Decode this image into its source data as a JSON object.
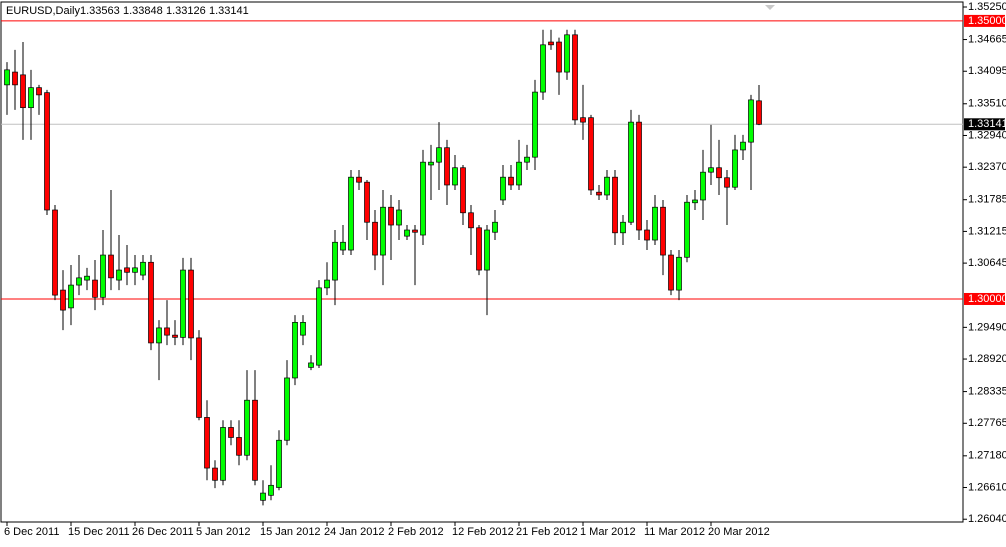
{
  "chart_data": {
    "type": "candlestick",
    "symbol": "EURUSD,Daily",
    "categories": [
      "6 Dec 2011",
      null,
      null,
      null,
      null,
      null,
      null,
      null,
      "15 Dec 2011",
      null,
      null,
      null,
      null,
      null,
      null,
      null,
      "26 Dec 2011",
      null,
      null,
      null,
      null,
      null,
      null,
      null,
      "5 Jan 2012",
      null,
      null,
      null,
      null,
      null,
      null,
      null,
      "15 Jan 2012",
      null,
      null,
      null,
      null,
      null,
      null,
      null,
      "24 Jan 2012",
      null,
      null,
      null,
      null,
      null,
      null,
      null,
      "2 Feb 2012",
      null,
      null,
      null,
      null,
      null,
      null,
      null,
      "12 Feb 2012",
      null,
      null,
      null,
      null,
      null,
      null,
      null,
      "21 Feb 2012",
      null,
      null,
      null,
      null,
      null,
      null,
      null,
      "1 Mar 2012",
      null,
      null,
      null,
      null,
      null,
      null,
      null,
      "11 Mar 2012",
      null,
      null,
      null,
      null,
      null,
      null,
      null,
      "20 Mar 2012",
      null,
      null,
      null,
      null,
      null,
      null
    ],
    "open": [
      1.3385,
      1.3408,
      1.3403,
      1.3344,
      1.338,
      1.3371,
      1.316,
      1.3016,
      1.2984,
      1.3025,
      1.3034,
      1.3034,
      1.3003,
      1.3079,
      1.3034,
      1.3056,
      1.3048,
      1.3043,
      1.3066,
      1.2921,
      1.2948,
      1.2935,
      1.2931,
      1.3052,
      1.293,
      1.2787,
      1.2696,
      1.2674,
      1.2769,
      1.2751,
      1.2719,
      1.2818,
      1.2638,
      1.2647,
      1.2661,
      1.2746,
      1.2858,
      1.2935,
      1.2877,
      1.2881,
      1.302,
      1.3034,
      1.3088,
      1.3088,
      1.3219,
      1.321,
      1.3138,
      1.3079,
      1.3165,
      1.3133,
      1.3113,
      1.3124,
      1.3115,
      1.3241,
      1.3246,
      1.3272,
      1.3205,
      1.3236,
      1.3155,
      1.3128,
      1.3052,
      1.312,
      1.3178,
      1.3219,
      1.3205,
      1.3246,
      1.3255,
      1.3372,
      1.3462,
      1.3462,
      1.3408,
      1.3475,
      1.3326,
      1.3326,
      1.3192,
      1.3187,
      1.3219,
      1.3119,
      1.3138,
      1.3318,
      1.3124,
      1.3106,
      1.3165,
      1.3079,
      1.3016,
      1.3075,
      1.3173,
      1.3178,
      1.3228,
      1.3236,
      1.3218,
      1.3201,
      1.3268,
      1.3282,
      1.33563
    ],
    "high": [
      1.3426,
      1.3448,
      1.3462,
      1.3412,
      1.3385,
      1.3376,
      1.3169,
      1.3052,
      1.3061,
      1.3079,
      1.3056,
      1.307,
      1.3124,
      1.3196,
      1.3115,
      1.3097,
      1.3079,
      1.3079,
      1.3079,
      1.2962,
      1.2998,
      1.2962,
      1.3074,
      1.3074,
      1.2944,
      1.2818,
      1.271,
      1.2782,
      1.2782,
      1.2782,
      1.2872,
      1.2872,
      1.2674,
      1.2701,
      1.2764,
      1.289,
      1.2971,
      1.2971,
      1.2899,
      1.3034,
      1.3066,
      1.3124,
      1.3133,
      1.3232,
      1.3232,
      1.3214,
      1.316,
      1.3196,
      1.3187,
      1.3178,
      1.3133,
      1.3133,
      1.3268,
      1.3277,
      1.3318,
      1.3286,
      1.3259,
      1.3241,
      1.3169,
      1.3133,
      1.3133,
      1.316,
      1.3241,
      1.3241,
      1.3286,
      1.3277,
      1.3394,
      1.3484,
      1.3484,
      1.347,
      1.3484,
      1.3484,
      1.3385,
      1.3331,
      1.3205,
      1.3232,
      1.3232,
      1.3151,
      1.334,
      1.3331,
      1.3142,
      1.3187,
      1.3178,
      1.3088,
      1.3088,
      1.3187,
      1.3196,
      1.3268,
      1.3313,
      1.3286,
      1.3232,
      1.3295,
      1.3295,
      1.3367,
      1.33848
    ],
    "low": [
      1.3331,
      1.334,
      1.3286,
      1.3286,
      1.3331,
      1.3151,
      1.2998,
      1.2944,
      1.2953,
      1.3007,
      1.3016,
      1.298,
      1.2989,
      1.3016,
      1.3016,
      1.3025,
      1.3025,
      1.3034,
      1.2908,
      1.2854,
      1.2917,
      1.2917,
      1.2917,
      1.289,
      1.2782,
      1.2674,
      1.266,
      1.2665,
      1.2737,
      1.2701,
      1.271,
      1.2665,
      1.2629,
      1.2638,
      1.2656,
      1.2737,
      1.2845,
      1.2917,
      1.2872,
      1.2876,
      1.3007,
      1.2989,
      1.3079,
      1.3079,
      1.3196,
      1.3106,
      1.3052,
      1.3025,
      1.307,
      1.3106,
      1.3106,
      1.3025,
      1.3097,
      1.3178,
      1.3196,
      1.3169,
      1.3196,
      1.3133,
      1.3079,
      1.3043,
      1.2971,
      1.3106,
      1.3169,
      1.3196,
      1.3196,
      1.3232,
      1.3232,
      1.3358,
      1.3448,
      1.3367,
      1.3394,
      1.3313,
      1.3286,
      1.3187,
      1.3178,
      1.3178,
      1.3097,
      1.3097,
      1.3133,
      1.3106,
      1.3088,
      1.3097,
      1.3043,
      1.3007,
      1.2998,
      1.3066,
      1.316,
      1.3142,
      1.3205,
      1.3187,
      1.3133,
      1.3196,
      1.325,
      1.3196,
      1.33126
    ],
    "close": [
      1.3412,
      1.3385,
      1.3344,
      1.338,
      1.3367,
      1.316,
      1.3007,
      1.298,
      1.3025,
      1.3038,
      1.3041,
      1.3003,
      1.3079,
      1.3038,
      1.3052,
      1.3048,
      1.3056,
      1.3066,
      1.2921,
      1.2948,
      1.2935,
      1.2931,
      1.3052,
      1.293,
      1.2787,
      1.2696,
      1.2674,
      1.2769,
      1.2751,
      1.2719,
      1.2818,
      1.2674,
      1.2651,
      1.2665,
      1.2746,
      1.2858,
      1.2958,
      1.2958,
      1.2885,
      1.302,
      1.3034,
      1.3102,
      1.3102,
      1.3219,
      1.321,
      1.3138,
      1.3079,
      1.3165,
      1.3133,
      1.316,
      1.3124,
      1.312,
      1.3246,
      1.3246,
      1.3272,
      1.3205,
      1.3236,
      1.3155,
      1.3128,
      1.3052,
      1.3124,
      1.3138,
      1.3219,
      1.3205,
      1.3246,
      1.3255,
      1.3372,
      1.3457,
      1.3457,
      1.3408,
      1.3475,
      1.3322,
      1.3318,
      1.3196,
      1.3187,
      1.3219,
      1.3119,
      1.3138,
      1.3318,
      1.3124,
      1.3106,
      1.3165,
      1.3079,
      1.3016,
      1.3075,
      1.3174,
      1.3178,
      1.3228,
      1.3236,
      1.3218,
      1.3201,
      1.3268,
      1.3282,
      1.3358,
      1.33141
    ],
    "up_color": "#00ff00",
    "down_color": "#ff0000",
    "wick_color": "#000000",
    "ylim": [
      1.2599,
      1.3534
    ],
    "yticks": [
      {
        "value": 1.3525,
        "label": "1.35250"
      },
      {
        "value": 1.34665,
        "label": "1.34665"
      },
      {
        "value": 1.34095,
        "label": "1.34095"
      },
      {
        "value": 1.3351,
        "label": "1.33510"
      },
      {
        "value": 1.3294,
        "label": "1.32940"
      },
      {
        "value": 1.3237,
        "label": "1.32370"
      },
      {
        "value": 1.31785,
        "label": "1.31785"
      },
      {
        "value": 1.31215,
        "label": "1.31215"
      },
      {
        "value": 1.30645,
        "label": "1.30645"
      },
      {
        "value": 1.2949,
        "label": "1.29490"
      },
      {
        "value": 1.2892,
        "label": "1.28920"
      },
      {
        "value": 1.28335,
        "label": "1.28335"
      },
      {
        "value": 1.27765,
        "label": "1.27765"
      },
      {
        "value": 1.2718,
        "label": "1.27180"
      },
      {
        "value": 1.2661,
        "label": "1.26610"
      },
      {
        "value": 1.2604,
        "label": "1.26040"
      }
    ],
    "levels": [
      {
        "value": 1.35,
        "label": "1.35000"
      },
      {
        "value": 1.3,
        "label": "1.30000"
      }
    ],
    "level_color": "#ff0000",
    "price_line_color": "#c0c0c0",
    "grid": false
  }
}
